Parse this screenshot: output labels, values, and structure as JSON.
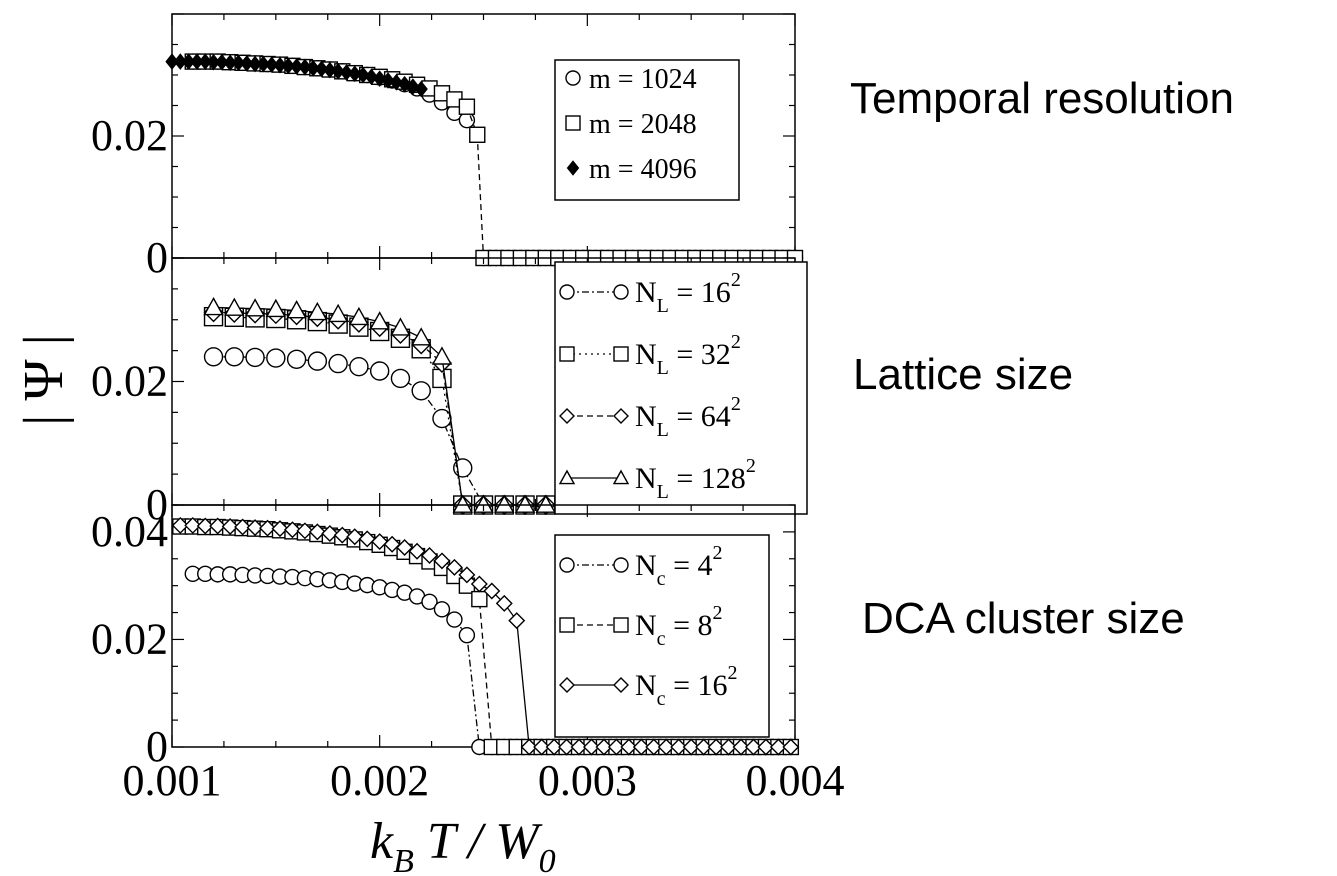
{
  "side_labels": {
    "top": "Temporal resolution",
    "middle": "Lattice size",
    "bottom": "DCA cluster size"
  },
  "axes": {
    "xlabel": {
      "k": "k",
      "k_sub": "B",
      "rest": "T / W",
      "w_sub": "0"
    },
    "ylabel": "| Ψ |",
    "xticks": [
      "0.001",
      "0.002",
      "0.003",
      "0.004"
    ]
  },
  "chart_data": [
    {
      "type": "line",
      "panel": "top",
      "xlim": [
        0.001,
        0.004
      ],
      "ylim": [
        0,
        0.04
      ],
      "yticks": [
        {
          "value": 0,
          "label": "0"
        },
        {
          "value": 0.02,
          "label": "0.02"
        }
      ],
      "grid": false,
      "legend_position": "top-right",
      "series": [
        {
          "name": "m = 1024",
          "marker": "circle",
          "line": "none",
          "x": [
            0.0011,
            0.00116,
            0.00122,
            0.00128,
            0.00134,
            0.0014,
            0.00146,
            0.00152,
            0.00158,
            0.00164,
            0.0017,
            0.00176,
            0.00182,
            0.00188,
            0.00194,
            0.002,
            0.00206,
            0.00212,
            0.00218,
            0.00224,
            0.0023,
            0.00236,
            0.00242,
            0.0025,
            0.00256,
            0.00262,
            0.00268,
            0.00274,
            0.0028,
            0.00286,
            0.00292,
            0.00298,
            0.00304,
            0.0031,
            0.00316,
            0.00322,
            0.00328,
            0.00334,
            0.0034,
            0.00346,
            0.00352,
            0.00358,
            0.00364,
            0.0037,
            0.00376,
            0.00382,
            0.00388,
            0.00394,
            0.004
          ],
          "y": [
            0.0322,
            0.0322,
            0.0322,
            0.0321,
            0.032,
            0.0319,
            0.0318,
            0.0317,
            0.0315,
            0.0313,
            0.0311,
            0.0309,
            0.0306,
            0.0303,
            0.03,
            0.0296,
            0.0291,
            0.0285,
            0.0278,
            0.0268,
            0.0255,
            0.0238,
            0.0226,
            0,
            0,
            0,
            0,
            0,
            0,
            0,
            0,
            0,
            0,
            0,
            0,
            0,
            0,
            0,
            0,
            0,
            0,
            0,
            0,
            0,
            0,
            0,
            0,
            0,
            0
          ]
        },
        {
          "name": "m = 2048",
          "marker": "square",
          "line": "dashed",
          "x": [
            0.0011,
            0.00116,
            0.00122,
            0.00128,
            0.00134,
            0.0014,
            0.00146,
            0.00152,
            0.00158,
            0.00164,
            0.0017,
            0.00176,
            0.00182,
            0.00188,
            0.00194,
            0.002,
            0.00206,
            0.00212,
            0.00218,
            0.00224,
            0.0023,
            0.00236,
            0.00242,
            0.00247,
            0.0025,
            0.00256,
            0.00262,
            0.00268,
            0.00274,
            0.0028,
            0.00286,
            0.00292,
            0.00298,
            0.00304,
            0.0031,
            0.00316,
            0.00322,
            0.00328,
            0.00334,
            0.0034,
            0.00346,
            0.00352,
            0.00358,
            0.00364,
            0.0037,
            0.00376,
            0.00382,
            0.00388,
            0.00394,
            0.004
          ],
          "y": [
            0.0322,
            0.0322,
            0.0322,
            0.0321,
            0.032,
            0.0319,
            0.0318,
            0.0317,
            0.0315,
            0.0313,
            0.0311,
            0.0309,
            0.0306,
            0.0303,
            0.03,
            0.0297,
            0.0293,
            0.0289,
            0.0284,
            0.0278,
            0.027,
            0.026,
            0.0248,
            0.0202,
            0,
            0,
            0,
            0,
            0,
            0,
            0,
            0,
            0,
            0,
            0,
            0,
            0,
            0,
            0,
            0,
            0,
            0,
            0,
            0,
            0,
            0,
            0,
            0,
            0,
            0
          ]
        },
        {
          "name": "m = 4096",
          "marker": "diamond-filled",
          "line": "none",
          "x": [
            0.001,
            0.00104,
            0.00108,
            0.00112,
            0.00116,
            0.0012,
            0.00124,
            0.00128,
            0.00132,
            0.00136,
            0.0014,
            0.00144,
            0.00148,
            0.00152,
            0.00156,
            0.0016,
            0.00164,
            0.00168,
            0.00172,
            0.00176,
            0.0018,
            0.00184,
            0.00188,
            0.00192,
            0.00196,
            0.002,
            0.00204,
            0.00208,
            0.00212,
            0.00216,
            0.0022
          ],
          "y": [
            0.0322,
            0.0322,
            0.0322,
            0.0322,
            0.0322,
            0.0321,
            0.0321,
            0.032,
            0.032,
            0.0319,
            0.0318,
            0.0318,
            0.0317,
            0.0316,
            0.0315,
            0.0314,
            0.0313,
            0.0311,
            0.031,
            0.0308,
            0.0306,
            0.0304,
            0.0302,
            0.03,
            0.0297,
            0.0294,
            0.0291,
            0.0288,
            0.0285,
            0.0281,
            0.0277
          ]
        }
      ]
    },
    {
      "type": "line",
      "panel": "middle",
      "xlim": [
        0.001,
        0.004
      ],
      "ylim": [
        0,
        0.04
      ],
      "yticks": [
        {
          "value": 0,
          "label": "0"
        },
        {
          "value": 0.02,
          "label": "0.02"
        }
      ],
      "grid": false,
      "legend_position": "right",
      "series": [
        {
          "name": "N",
          "sub": "L",
          "value": " = 16",
          "sup": "2",
          "marker": "circle",
          "line": "dashdot",
          "x": [
            0.0012,
            0.0013,
            0.0014,
            0.0015,
            0.0016,
            0.0017,
            0.0018,
            0.0019,
            0.002,
            0.0021,
            0.0022,
            0.0023,
            0.0024,
            0.0025,
            0.0026,
            0.0027,
            0.0028
          ],
          "y": [
            0.024,
            0.024,
            0.0239,
            0.0238,
            0.0236,
            0.0233,
            0.0229,
            0.0224,
            0.0217,
            0.0205,
            0.0185,
            0.014,
            0.006,
            0,
            0,
            0,
            0
          ]
        },
        {
          "name": "N",
          "sub": "L",
          "value": " = 32",
          "sup": "2",
          "marker": "square",
          "line": "dotted",
          "x": [
            0.0012,
            0.0013,
            0.0014,
            0.0015,
            0.0016,
            0.0017,
            0.0018,
            0.0019,
            0.002,
            0.0021,
            0.0022,
            0.0023,
            0.0024,
            0.0025,
            0.0026,
            0.0027,
            0.0028
          ],
          "y": [
            0.0305,
            0.0304,
            0.0303,
            0.0302,
            0.03,
            0.0297,
            0.0293,
            0.0288,
            0.0281,
            0.027,
            0.0253,
            0.0205,
            0,
            0,
            0,
            0,
            0
          ]
        },
        {
          "name": "N",
          "sub": "L",
          "value": " = 64",
          "sup": "2",
          "marker": "diamond",
          "line": "dashed",
          "x": [
            0.0012,
            0.0013,
            0.0014,
            0.0015,
            0.0016,
            0.0017,
            0.0018,
            0.0019,
            0.002,
            0.0021,
            0.0022,
            0.0023,
            0.0024,
            0.0025,
            0.0026,
            0.0027,
            0.0028
          ],
          "y": [
            0.0312,
            0.0311,
            0.031,
            0.0309,
            0.0307,
            0.0304,
            0.03,
            0.0295,
            0.0288,
            0.0277,
            0.026,
            0.023,
            0,
            0,
            0,
            0,
            0
          ]
        },
        {
          "name": "N",
          "sub": "L",
          "value": " = 128",
          "sup": "2",
          "marker": "triangle",
          "line": "solid",
          "x": [
            0.0012,
            0.0013,
            0.0014,
            0.0015,
            0.0016,
            0.0017,
            0.0018,
            0.0019,
            0.002,
            0.0021,
            0.0022,
            0.0023,
            0.0024,
            0.0025,
            0.0026,
            0.0027,
            0.0028
          ],
          "y": [
            0.032,
            0.0319,
            0.0318,
            0.0317,
            0.0315,
            0.0312,
            0.0309,
            0.0304,
            0.0297,
            0.0287,
            0.0271,
            0.024,
            0,
            0,
            0,
            0,
            0
          ]
        }
      ]
    },
    {
      "type": "line",
      "panel": "bottom",
      "xlim": [
        0.001,
        0.004
      ],
      "ylim": [
        0,
        0.045
      ],
      "yticks": [
        {
          "value": 0,
          "label": "0"
        },
        {
          "value": 0.02,
          "label": "0.02"
        },
        {
          "value": 0.04,
          "label": "0.04"
        }
      ],
      "grid": false,
      "legend_position": "right",
      "series": [
        {
          "name": "N",
          "sub": "c",
          "value": " = 4",
          "sup": "2",
          "marker": "circle",
          "line": "dashdot",
          "x": [
            0.0011,
            0.00116,
            0.00122,
            0.00128,
            0.00134,
            0.0014,
            0.00146,
            0.00152,
            0.00158,
            0.00164,
            0.0017,
            0.00176,
            0.00182,
            0.00188,
            0.00194,
            0.002,
            0.00206,
            0.00212,
            0.00218,
            0.00224,
            0.0023,
            0.00236,
            0.00242,
            0.00248,
            0.00254,
            0.0026,
            0.00266,
            0.00272,
            0.00278,
            0.00284,
            0.0029,
            0.00296,
            0.00302,
            0.00308,
            0.00314,
            0.0032,
            0.00326,
            0.00332,
            0.00338,
            0.00344,
            0.0035,
            0.00356,
            0.00362,
            0.00368,
            0.00374,
            0.0038,
            0.00386,
            0.00392,
            0.00398
          ],
          "y": [
            0.0322,
            0.0322,
            0.0321,
            0.0321,
            0.032,
            0.0319,
            0.0318,
            0.0317,
            0.0316,
            0.0314,
            0.0312,
            0.031,
            0.0307,
            0.0304,
            0.0301,
            0.0297,
            0.0292,
            0.0287,
            0.028,
            0.027,
            0.0256,
            0.0237,
            0.0208,
            0.0,
            0,
            0,
            0,
            0,
            0,
            0,
            0,
            0,
            0,
            0,
            0,
            0,
            0,
            0,
            0,
            0,
            0,
            0,
            0,
            0,
            0,
            0,
            0,
            0,
            0
          ]
        },
        {
          "name": "N",
          "sub": "c",
          "value": " = 8",
          "sup": "2",
          "marker": "square",
          "line": "dashed",
          "x": [
            0.00104,
            0.0011,
            0.00116,
            0.00122,
            0.00128,
            0.00134,
            0.0014,
            0.00146,
            0.00152,
            0.00158,
            0.00164,
            0.0017,
            0.00176,
            0.00182,
            0.00188,
            0.00194,
            0.002,
            0.00206,
            0.00212,
            0.00218,
            0.00224,
            0.0023,
            0.00236,
            0.00242,
            0.00248,
            0.00254,
            0.0026,
            0.00266,
            0.00272,
            0.00278,
            0.00284,
            0.0029,
            0.00296,
            0.00302,
            0.00308,
            0.00314,
            0.0032,
            0.00326,
            0.00332,
            0.00338,
            0.00344,
            0.0035,
            0.00356,
            0.00362,
            0.00368,
            0.00374,
            0.0038,
            0.00386,
            0.00392,
            0.00398
          ],
          "y": [
            0.041,
            0.041,
            0.0409,
            0.0409,
            0.0408,
            0.0407,
            0.0406,
            0.0405,
            0.0403,
            0.0401,
            0.0399,
            0.0396,
            0.0393,
            0.039,
            0.0386,
            0.0381,
            0.0376,
            0.037,
            0.0363,
            0.0355,
            0.0345,
            0.0333,
            0.0318,
            0.03,
            0.0275,
            0,
            0,
            0,
            0,
            0,
            0,
            0,
            0,
            0,
            0,
            0,
            0,
            0,
            0,
            0,
            0,
            0,
            0,
            0,
            0,
            0,
            0,
            0,
            0,
            0
          ]
        },
        {
          "name": "N",
          "sub": "c",
          "value": " = 16",
          "sup": "2",
          "marker": "diamond",
          "line": "solid",
          "x": [
            0.00104,
            0.0011,
            0.00116,
            0.00122,
            0.00128,
            0.00134,
            0.0014,
            0.00146,
            0.00152,
            0.00158,
            0.00164,
            0.0017,
            0.00176,
            0.00182,
            0.00188,
            0.00194,
            0.002,
            0.00206,
            0.00212,
            0.00218,
            0.00224,
            0.0023,
            0.00236,
            0.00242,
            0.00248,
            0.00254,
            0.0026,
            0.00266,
            0.00272,
            0.00278,
            0.00284,
            0.0029,
            0.00296,
            0.00302,
            0.00308,
            0.00314,
            0.0032,
            0.00326,
            0.00332,
            0.00338,
            0.00344,
            0.0035,
            0.00356,
            0.00362,
            0.00368,
            0.00374,
            0.0038,
            0.00386,
            0.00392,
            0.00398
          ],
          "y": [
            0.0412,
            0.0412,
            0.0411,
            0.0411,
            0.041,
            0.0409,
            0.0408,
            0.0407,
            0.0406,
            0.0404,
            0.0402,
            0.04,
            0.0397,
            0.0394,
            0.0391,
            0.0387,
            0.0382,
            0.0377,
            0.0371,
            0.0364,
            0.0356,
            0.0346,
            0.0334,
            0.032,
            0.0303,
            0.029,
            0.0267,
            0.0235,
            0,
            0,
            0,
            0,
            0,
            0,
            0,
            0,
            0,
            0,
            0,
            0,
            0,
            0,
            0,
            0,
            0,
            0,
            0,
            0,
            0,
            0
          ]
        }
      ]
    }
  ]
}
